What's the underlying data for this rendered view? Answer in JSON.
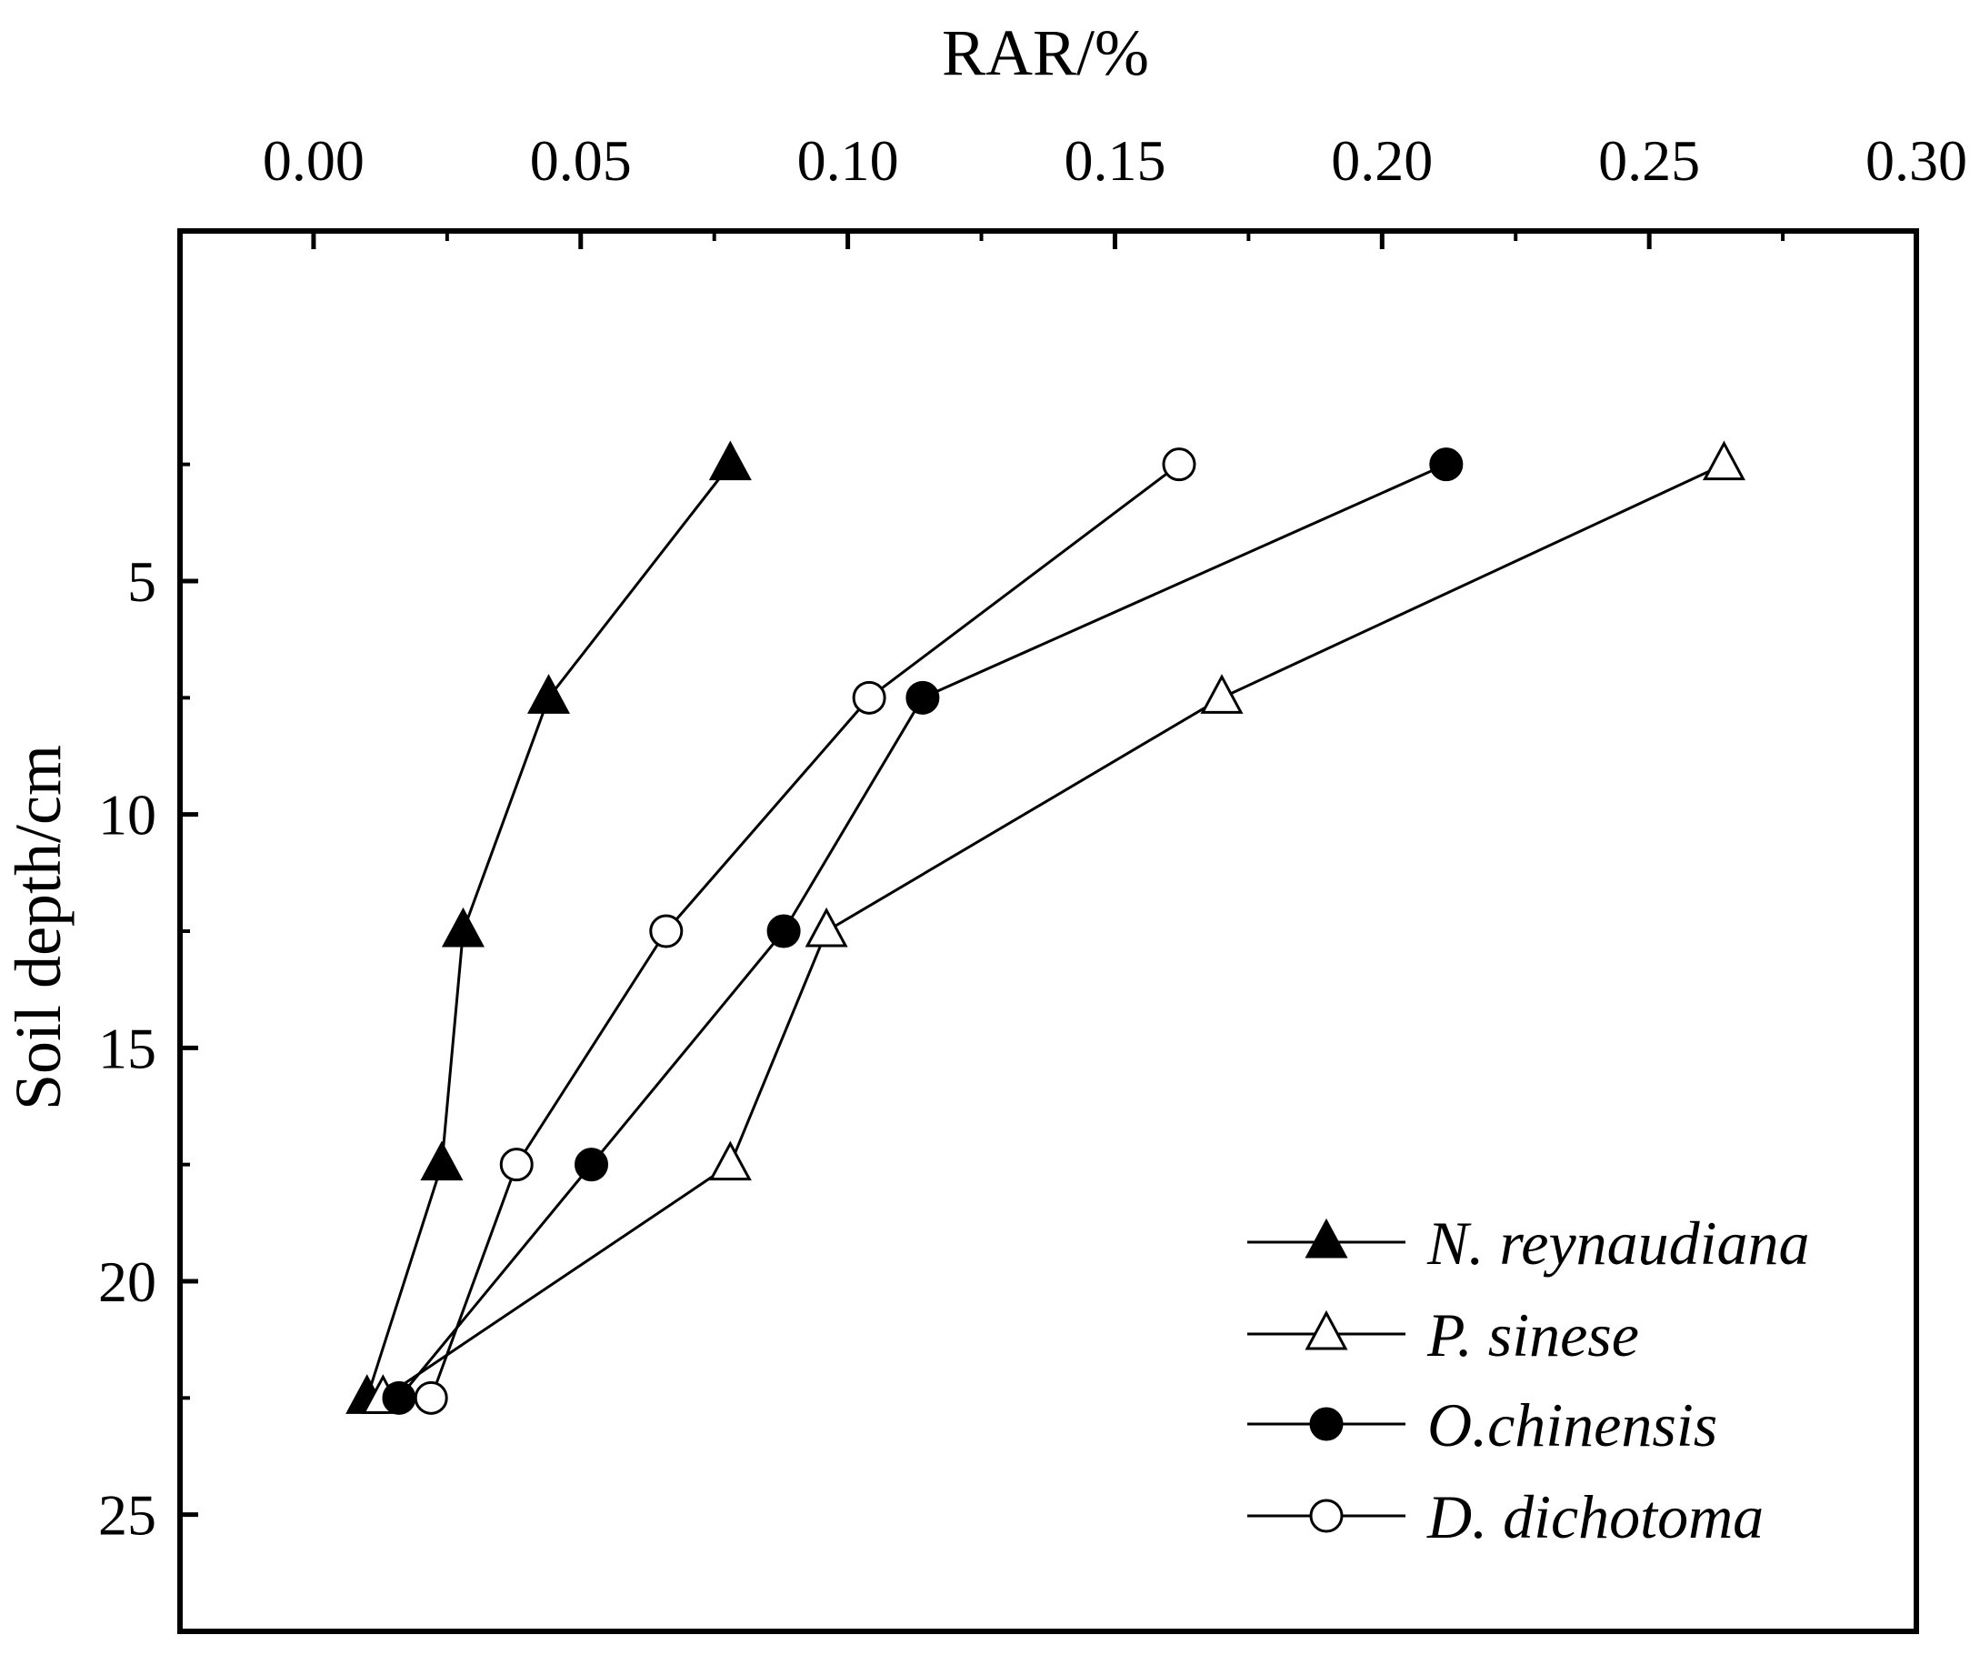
{
  "chart_data": {
    "type": "scatter",
    "title": "",
    "xlabel": "RAR/%",
    "ylabel": "Soil depth/cm",
    "xlim": [
      -0.025,
      0.3
    ],
    "ylim": [
      27.5,
      -2.5
    ],
    "x_ticks": [
      "0.00",
      "0.05",
      "0.10",
      "0.15",
      "0.20",
      "0.25",
      "0.30"
    ],
    "y_ticks": [
      "5",
      "10",
      "15",
      "20",
      "25"
    ],
    "x_axis_position": "top",
    "y_axis_direction": "downward",
    "grid": false,
    "legend_position": "bottom-right",
    "depths": [
      2.5,
      7.5,
      12.5,
      17.5,
      22.5
    ],
    "series": [
      {
        "name": "N. reynaudiana",
        "marker": "filled-triangle",
        "x": [
          0.078,
          0.044,
          0.028,
          0.024,
          0.01
        ]
      },
      {
        "name": "P. sinese",
        "marker": "open-triangle",
        "x": [
          0.264,
          0.17,
          0.096,
          0.078,
          0.013
        ]
      },
      {
        "name": "O.chinensis",
        "marker": "filled-circle",
        "x": [
          0.212,
          0.114,
          0.088,
          0.052,
          0.016
        ]
      },
      {
        "name": "D. dichotoma",
        "marker": "open-circle",
        "x": [
          0.162,
          0.104,
          0.066,
          0.038,
          0.022
        ]
      }
    ],
    "colors": {
      "line": "#000000",
      "fill": "#000000",
      "background": "#ffffff"
    }
  }
}
